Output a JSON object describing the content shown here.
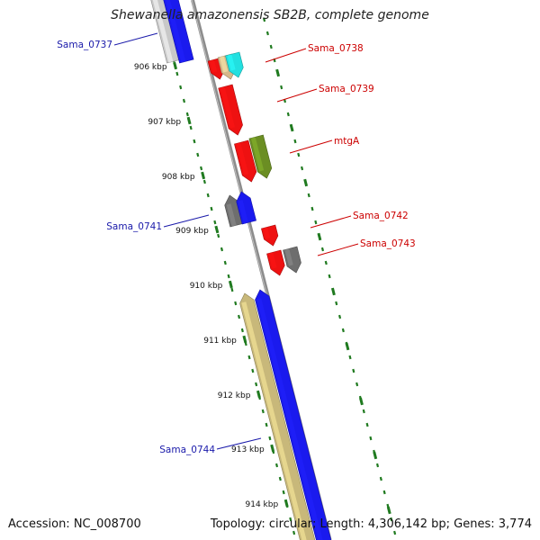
{
  "title": "Shewanella amazonensis SB2B, complete genome",
  "accession": "Accession: NC_008700",
  "summary": "Topology: circular; Length: 4,306,142 bp; Genes: 3,774",
  "colors": {
    "backbone": "#8c8c8c",
    "tick": "#1f7a1f",
    "tick_label": "#111111",
    "label_forward": "#cc0000",
    "label_reverse": "#1a1aaa",
    "red": "#ee1111",
    "blue": "#1a1aee",
    "gray": "#6e6e6e",
    "lightgray": "#c8c8c8",
    "olive": "#6b8e23",
    "khaki": "#c8b87a",
    "tan": "#d6b98a",
    "cyan": "#22e0e0"
  },
  "kbp_ticks": [
    "906 kbp",
    "907 kbp",
    "908 kbp",
    "909 kbp",
    "910 kbp",
    "911 kbp",
    "912 kbp",
    "913 kbp",
    "914 kbp"
  ],
  "gene_labels": [
    {
      "name": "Sama_0737",
      "side": "left"
    },
    {
      "name": "Sama_0738",
      "side": "right"
    },
    {
      "name": "Sama_0739",
      "side": "right"
    },
    {
      "name": "mtgA",
      "side": "right"
    },
    {
      "name": "Sama_0741",
      "side": "left"
    },
    {
      "name": "Sama_0742",
      "side": "right"
    },
    {
      "name": "Sama_0743",
      "side": "right"
    },
    {
      "name": "Sama_0744",
      "side": "left"
    }
  ],
  "features": [
    {
      "strand": "reverse",
      "color": "lightgray"
    },
    {
      "strand": "reverse",
      "color": "blue"
    },
    {
      "strand": "forward",
      "color": "red"
    },
    {
      "strand": "forward",
      "color": "tan"
    },
    {
      "strand": "forward",
      "color": "cyan"
    },
    {
      "strand": "forward",
      "color": "red"
    },
    {
      "strand": "forward",
      "color": "red"
    },
    {
      "strand": "forward",
      "color": "olive"
    },
    {
      "strand": "reverse",
      "color": "gray"
    },
    {
      "strand": "reverse",
      "color": "blue"
    },
    {
      "strand": "forward",
      "color": "red"
    },
    {
      "strand": "forward",
      "color": "red"
    },
    {
      "strand": "forward",
      "color": "gray"
    },
    {
      "strand": "reverse",
      "color": "khaki"
    },
    {
      "strand": "reverse",
      "color": "blue"
    }
  ]
}
